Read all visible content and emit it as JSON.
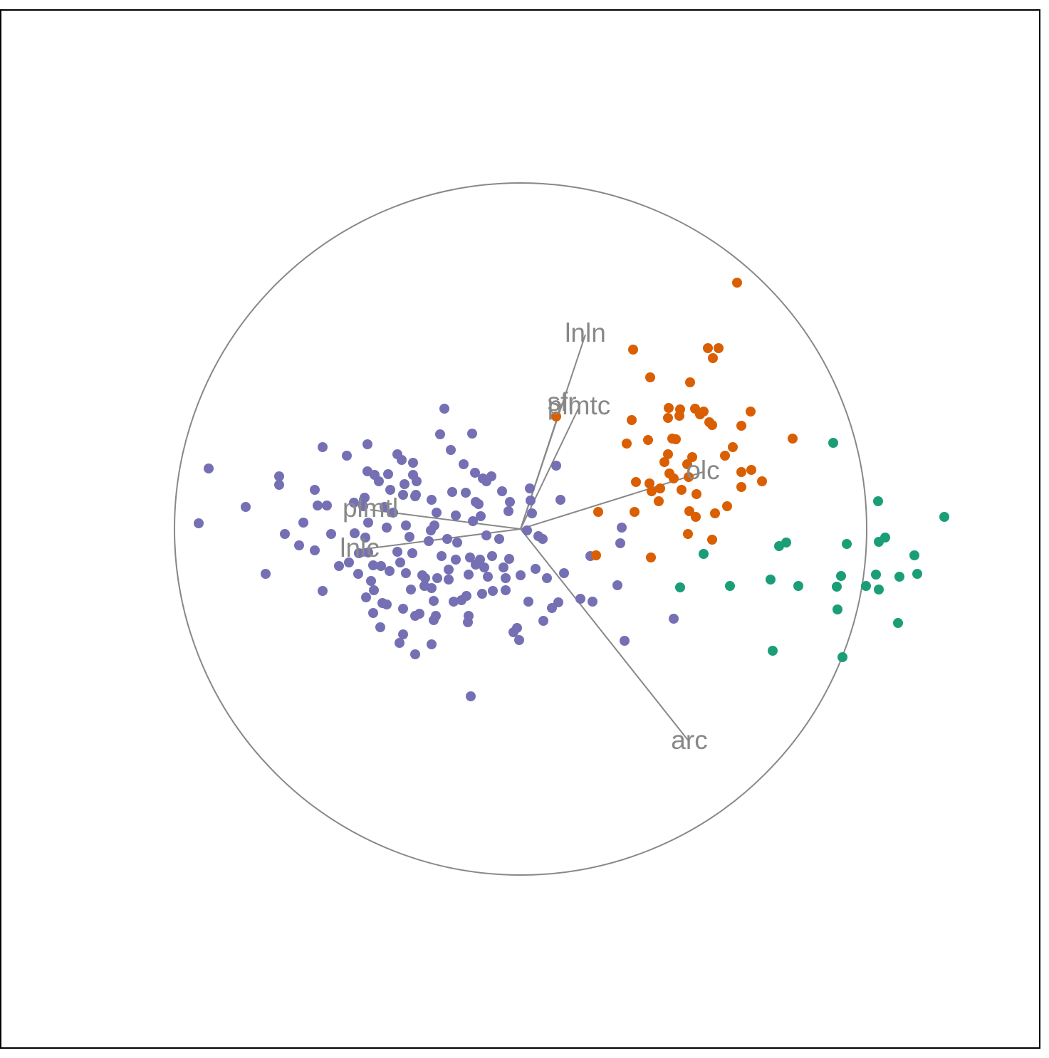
{
  "chart_data": {
    "type": "scatter",
    "xlim": [
      0,
      1460
    ],
    "ylim": [
      1472,
      14
    ],
    "origin": [
      731,
      743
    ],
    "circle_radius": 486,
    "axes": [
      {
        "label": "lnln",
        "x": 822,
        "y": 470
      },
      {
        "label": "sfr",
        "x": 789,
        "y": 567
      },
      {
        "label": "plmtc",
        "x": 813,
        "y": 572
      },
      {
        "label": "olc",
        "x": 987,
        "y": 663
      },
      {
        "label": "plmtl",
        "x": 520,
        "y": 716
      },
      {
        "label": "lnlc",
        "x": 505,
        "y": 772
      },
      {
        "label": "arc",
        "x": 968,
        "y": 1042
      }
    ],
    "series": [
      {
        "color": "#7570b3",
        "x": [
          293,
          279,
          345,
          373,
          392,
          392,
          400,
          420,
          426,
          442,
          442,
          446,
          453,
          453,
          459,
          465,
          476,
          487,
          490,
          497,
          498,
          503,
          504,
          510,
          512,
          516,
          516,
          517,
          513,
          514,
          517,
          521,
          524,
          526,
          525,
          524,
          534,
          532,
          535,
          537,
          545,
          547,
          543,
          548,
          540,
          552,
          543,
          558,
          558,
          562,
          561,
          566,
          564,
          566,
          566,
          568,
          570,
          570,
          575,
          577,
          580,
          580,
          579,
          583,
          585,
          583,
          583,
          584,
          589,
          593,
          596,
          597,
          602,
          605,
          606,
          606,
          606,
          609,
          609,
          612,
          610,
          613,
          614,
          618,
          624,
          620,
          628,
          630,
          630,
          633,
          635,
          637,
          640,
          640,
          642,
          651,
          654,
          648,
          655,
          657,
          658,
          658,
          660,
          663,
          664,
          667,
          668,
          668,
          672,
          674,
          675,
          678,
          677,
          680,
          683,
          685,
          683,
          690,
          691,
          692,
          701,
          705,
          707,
          710,
          710,
          714,
          716,
          715,
          721,
          726,
          729,
          731,
          740,
          742,
          744,
          745,
          747,
          752,
          756,
          762,
          763,
          768,
          775,
          781,
          784,
          787,
          792,
          815,
          832,
          829,
          867,
          871,
          873,
          877,
          946,
          661
        ],
        "y": [
          658,
          735,
          712,
          806,
          669,
          681,
          750,
          766,
          734,
          688,
          773,
          710,
          628,
          830,
          710,
          750,
          795,
          640,
          790,
          706,
          749,
          806,
          777,
          711,
          699,
          624,
          662,
          776,
          755,
          839,
          734,
          816,
          794,
          667,
          829,
          861,
          881,
          676,
          795,
          847,
          666,
          802,
          849,
          688,
          712,
          720,
          741,
          638,
          775,
          790,
          903,
          891,
          646,
          855,
          695,
          680,
          738,
          805,
          754,
          828,
          650,
          667,
          777,
          697,
          676,
          865,
          919,
          695,
          862,
          808,
          823,
          812,
          760,
          745,
          702,
          826,
          905,
          844,
          871,
          865,
          738,
          720,
          812,
          610,
          574,
          781,
          757,
          800,
          814,
          632,
          691,
          845,
          724,
          786,
          762,
          652,
          692,
          843,
          837,
          874,
          807,
          865,
          783,
          609,
          732,
          664,
          705,
          793,
          708,
          786,
          725,
          672,
          834,
          797,
          752,
          810,
          676,
          669,
          781,
          830,
          757,
          690,
          797,
          812,
          829,
          718,
          705,
          785,
          888,
          882,
          899,
          808,
          745,
          845,
          686,
          703,
          721,
          799,
          753,
          757,
          872,
          812,
          854,
          654,
          846,
          702,
          805,
          841,
          845,
          781,
          822,
          763,
          741,
          900,
          869,
          978
        ]
      },
      {
        "color": "#d95f02",
        "x": [
          1035,
          889,
          994,
          1009,
          1001,
          913,
          969,
          939,
          955,
          976,
          988,
          983,
          938,
          954,
          1054,
          996,
          1000,
          1041,
          887,
          1113,
          880,
          910,
          944,
          949,
          1029,
          938,
          972,
          1018,
          933,
          965,
          1041,
          1055,
          940,
          946,
          967,
          893,
          912,
          1070,
          1041,
          915,
          927,
          957,
          978,
          925,
          1021,
          891,
          840,
          968,
          977,
          1004,
          966,
          1000,
          837,
          914,
          781
        ],
        "y": [
          397,
          491,
          489,
          489,
          503,
          530,
          537,
          573,
          575,
          574,
          578,
          582,
          587,
          584,
          578,
          593,
          597,
          598,
          590,
          616,
          623,
          618,
          616,
          617,
          628,
          638,
          642,
          640,
          649,
          652,
          663,
          660,
          665,
          672,
          670,
          677,
          679,
          676,
          684,
          690,
          686,
          688,
          694,
          704,
          711,
          719,
          719,
          718,
          726,
          721,
          750,
          758,
          780,
          783,
          585
        ]
      },
      {
        "color": "#1b9e77",
        "x": [
          1170,
          1233,
          1326,
          1243,
          1234,
          1189,
          1104,
          1094,
          988,
          1284,
          1288,
          1230,
          1263,
          1181,
          1082,
          1025,
          955,
          1121,
          1175,
          1216,
          1234,
          1176,
          1261,
          1085,
          1183
        ],
        "y": [
          622,
          704,
          726,
          755,
          761,
          764,
          762,
          767,
          778,
          780,
          806,
          807,
          810,
          809,
          814,
          823,
          825,
          823,
          824,
          823,
          828,
          856,
          875,
          914,
          923
        ]
      }
    ]
  }
}
